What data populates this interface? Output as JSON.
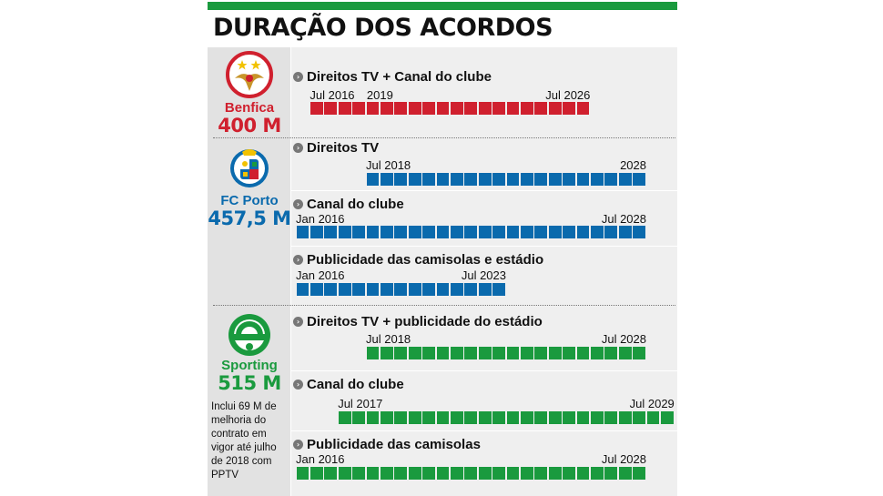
{
  "title": "DURAÇÃO DOS ACORDOS",
  "colors": {
    "benfica": "#d0202e",
    "porto": "#0a6aad",
    "sporting": "#1a9a3e",
    "header_bar": "#1a9a3e"
  },
  "clubs": [
    {
      "name": "Benfica",
      "amount": "400 M",
      "color": "#d0202e",
      "logo": "benfica-eagle-crest-icon"
    },
    {
      "name": "FC Porto",
      "amount": "457,5 M",
      "color": "#0a6aad",
      "logo": "fc-porto-crest-icon"
    },
    {
      "name": "Sporting",
      "amount": "515 M",
      "color": "#1a9a3e",
      "logo": "sporting-lion-crest-icon",
      "note": "Inclui 69 M de melhoria do contrato em vigor até julho de 2018 com PPTV"
    }
  ],
  "chart_data": {
    "type": "timeline",
    "contracts": [
      {
        "club": "Benfica",
        "title": "Direitos TV + Canal do clube",
        "start": "2016-07",
        "end": "2026-07",
        "labels": [
          "Jul 2016",
          "2019",
          "Jul 2026"
        ],
        "label_dates": [
          "2016-07",
          "2019-01",
          "2026-07"
        ]
      },
      {
        "club": "FC Porto",
        "title": "Direitos TV",
        "start": "2018-07",
        "end": "2028-07",
        "labels": [
          "Jul 2018",
          "2028"
        ],
        "label_dates": [
          "2018-07",
          "2028-07"
        ]
      },
      {
        "club": "FC Porto",
        "title": "Canal do clube",
        "start": "2016-01",
        "end": "2028-07",
        "labels": [
          "Jan 2016",
          "Jul 2028"
        ],
        "label_dates": [
          "2016-01",
          "2028-07"
        ]
      },
      {
        "club": "FC Porto",
        "title": "Publicidade das camisolas e estádio",
        "start": "2016-01",
        "end": "2023-07",
        "labels": [
          "Jan 2016",
          "Jul 2023"
        ],
        "label_dates": [
          "2016-01",
          "2023-07"
        ]
      },
      {
        "club": "Sporting",
        "title": "Direitos TV + publicidade do estádio",
        "start": "2018-07",
        "end": "2028-07",
        "labels": [
          "Jul 2018",
          "Jul 2028"
        ],
        "label_dates": [
          "2018-07",
          "2028-07"
        ]
      },
      {
        "club": "Sporting",
        "title": "Canal do clube",
        "start": "2017-07",
        "end": "2029-07",
        "labels": [
          "Jul 2017",
          "Jul 2029"
        ],
        "label_dates": [
          "2017-07",
          "2029-07"
        ]
      },
      {
        "club": "Sporting",
        "title": "Publicidade das camisolas",
        "start": "2016-01",
        "end": "2028-07",
        "labels": [
          "Jan 2016",
          "Jul 2028"
        ],
        "label_dates": [
          "2016-01",
          "2028-07"
        ]
      }
    ]
  }
}
